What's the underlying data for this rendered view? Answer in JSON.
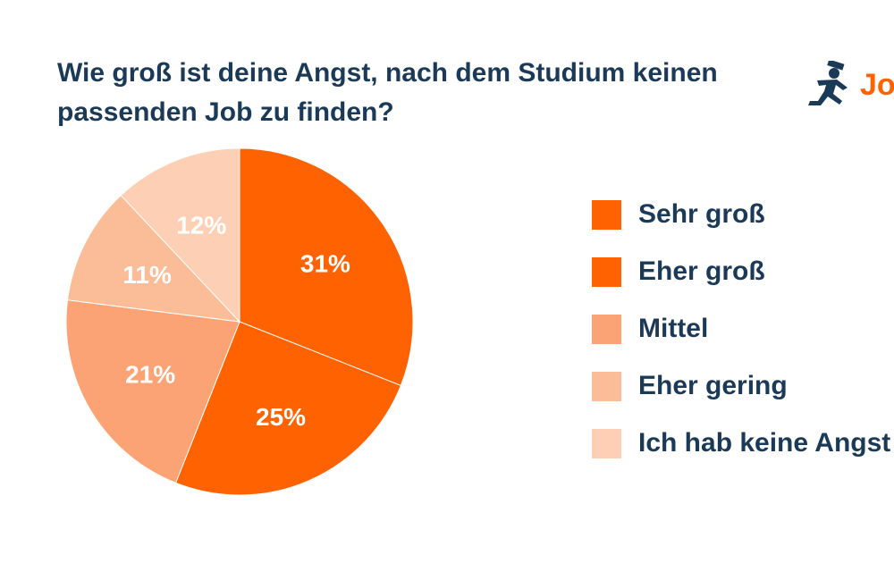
{
  "chart_data": {
    "type": "pie",
    "title": "Wie groß ist deine Angst, nach dem Studium keinen passenden Job zu finden?",
    "slices": [
      {
        "label": "Sehr groß",
        "value": 31,
        "display": "31%",
        "color": "#ff6200"
      },
      {
        "label": "Eher groß",
        "value": 25,
        "display": "25%",
        "color": "#ff6200"
      },
      {
        "label": "Mittel",
        "value": 21,
        "display": "21%",
        "color": "#fba374"
      },
      {
        "label": "Eher gering",
        "value": 11,
        "display": "11%",
        "color": "#fbbd98"
      },
      {
        "label": "Ich hab keine Angst",
        "value": 12,
        "display": "12%",
        "color": "#fdd0b5"
      }
    ],
    "legend": {
      "placement": "right"
    }
  },
  "brand": {
    "logo_text": "Jo",
    "logo_color": "#ff6200",
    "icon_color": "#1b3a57",
    "icon": "running-man-icon"
  },
  "colors": {
    "title": "#1b3a57",
    "slice_border": "#ffffff",
    "slice_label": "#ffffff"
  }
}
